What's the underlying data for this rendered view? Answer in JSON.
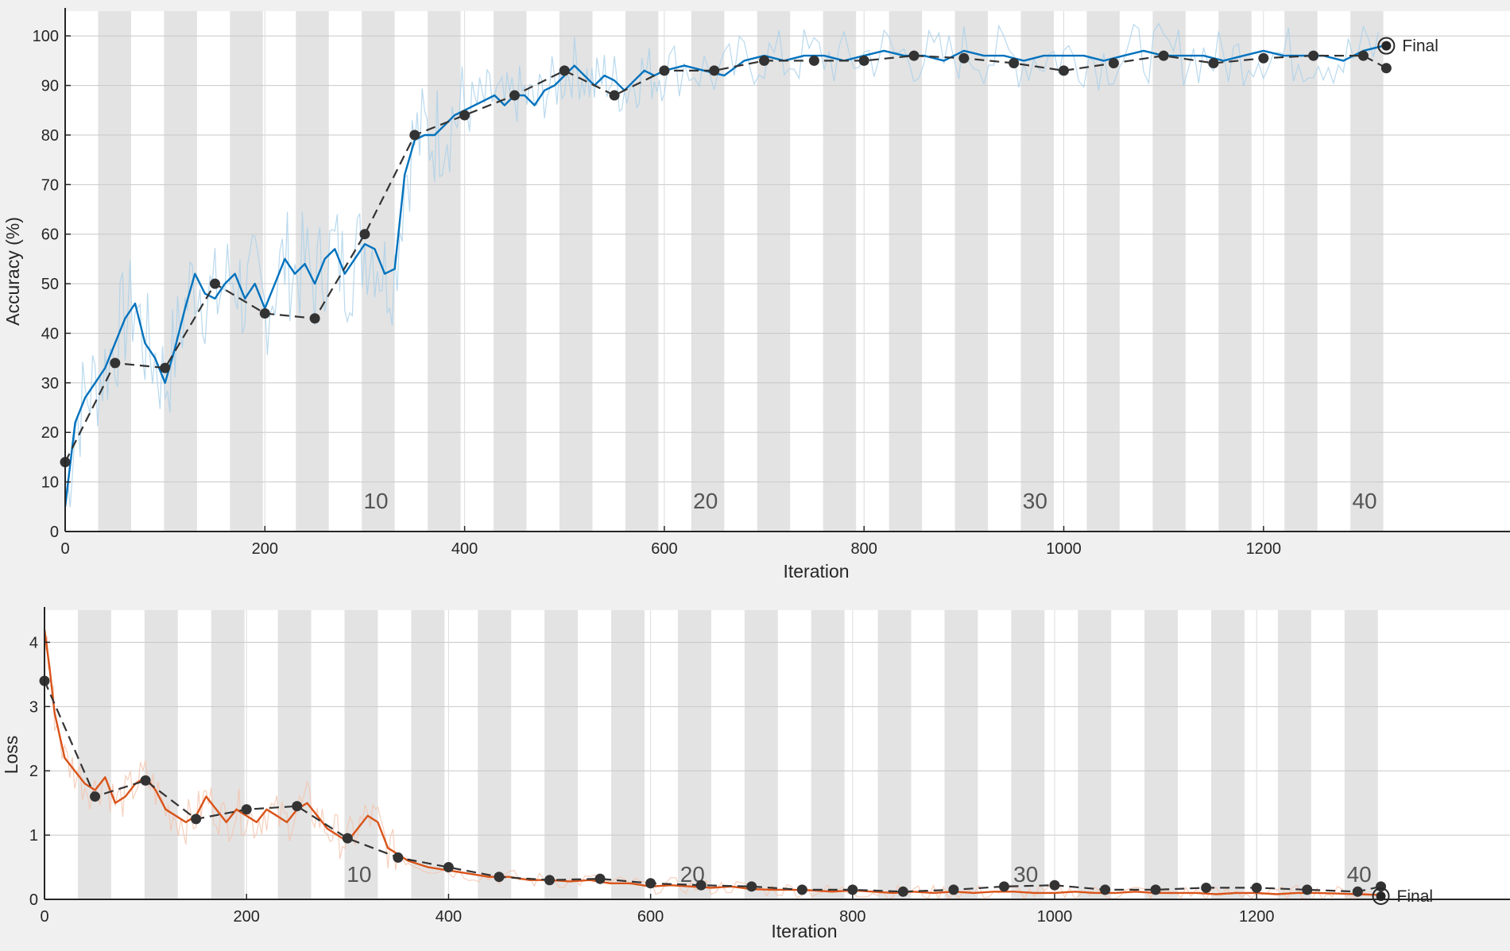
{
  "chart_data": [
    {
      "type": "line",
      "xlabel": "Iteration",
      "ylabel": "Accuracy (%)",
      "xlim": [
        0,
        1380
      ],
      "ylim": [
        0,
        105
      ],
      "x_ticks": [
        0,
        200,
        400,
        600,
        800,
        1000,
        1200
      ],
      "y_ticks": [
        0,
        10,
        20,
        30,
        40,
        50,
        60,
        70,
        80,
        90,
        100
      ],
      "x_tick_labels": [
        "0",
        "200",
        "400",
        "600",
        "800",
        "1000",
        "1200"
      ],
      "y_tick_labels": [
        "0",
        "10",
        "20",
        "30",
        "40",
        "50",
        "60",
        "70",
        "80",
        "90",
        "100"
      ],
      "grid": true,
      "epoch_bands": {
        "iterations_per_epoch": 33,
        "epochs": 40,
        "labels": [
          {
            "epoch": 10,
            "text": "10"
          },
          {
            "epoch": 20,
            "text": "20"
          },
          {
            "epoch": 30,
            "text": "30"
          },
          {
            "epoch": 40,
            "text": "40"
          }
        ]
      },
      "final_label": "Final",
      "final_point": {
        "x": 1323,
        "y": 98
      },
      "colors": {
        "training": "#0072bd",
        "training_raw": "#a8cfea",
        "validation": "#333333",
        "band": "#e3e3e3"
      },
      "series": [
        {
          "kind": "smoothed-training",
          "x": [
            0,
            10,
            20,
            30,
            40,
            50,
            60,
            70,
            80,
            90,
            100,
            110,
            120,
            130,
            140,
            150,
            160,
            170,
            180,
            190,
            200,
            210,
            220,
            230,
            240,
            250,
            260,
            270,
            280,
            290,
            300,
            310,
            320,
            330,
            340,
            350,
            360,
            370,
            380,
            390,
            400,
            410,
            420,
            430,
            440,
            450,
            460,
            470,
            480,
            490,
            500,
            510,
            520,
            530,
            540,
            550,
            560,
            570,
            580,
            590,
            600,
            620,
            640,
            660,
            680,
            700,
            720,
            740,
            760,
            780,
            800,
            820,
            840,
            860,
            880,
            900,
            920,
            940,
            960,
            980,
            1000,
            1020,
            1040,
            1060,
            1080,
            1100,
            1120,
            1140,
            1160,
            1180,
            1200,
            1220,
            1240,
            1260,
            1280,
            1300,
            1320
          ],
          "y": [
            5,
            22,
            27,
            30,
            33,
            38,
            43,
            46,
            38,
            35,
            30,
            37,
            45,
            52,
            48,
            47,
            50,
            52,
            47,
            50,
            45,
            50,
            55,
            52,
            54,
            50,
            55,
            57,
            52,
            55,
            58,
            57,
            52,
            53,
            72,
            79,
            80,
            80,
            82,
            84,
            85,
            86,
            87,
            88,
            86,
            88,
            88,
            86,
            89,
            90,
            92,
            94,
            92,
            90,
            92,
            91,
            89,
            91,
            93,
            92,
            93,
            94,
            93,
            92,
            95,
            96,
            95,
            96,
            96,
            95,
            96,
            97,
            96,
            96,
            95,
            97,
            96,
            96,
            95,
            96,
            96,
            96,
            95,
            96,
            97,
            96,
            96,
            96,
            95,
            96,
            97,
            96,
            96,
            96,
            95,
            97,
            98
          ]
        },
        {
          "kind": "validation",
          "x": [
            0,
            50,
            100,
            150,
            200,
            250,
            300,
            350,
            400,
            450,
            500,
            550,
            600,
            650,
            700,
            750,
            800,
            850,
            900,
            950,
            1000,
            1050,
            1100,
            1150,
            1200,
            1250,
            1300,
            1323
          ],
          "y": [
            14,
            34,
            33,
            50,
            44,
            43,
            60,
            80,
            84,
            88,
            93,
            88,
            93,
            93,
            95,
            95,
            95,
            96,
            95.5,
            94.5,
            93,
            94.5,
            96,
            94.5,
            95.5,
            96,
            96,
            93.5
          ]
        }
      ]
    },
    {
      "type": "line",
      "xlabel": "Iteration",
      "ylabel": "Loss",
      "xlim": [
        0,
        1380
      ],
      "ylim": [
        0,
        4.5
      ],
      "x_ticks": [
        0,
        200,
        400,
        600,
        800,
        1000,
        1200
      ],
      "y_ticks": [
        0,
        1,
        2,
        3,
        4
      ],
      "x_tick_labels": [
        "0",
        "200",
        "400",
        "600",
        "800",
        "1000",
        "1200"
      ],
      "y_tick_labels": [
        "0",
        "1",
        "2",
        "3",
        "4"
      ],
      "grid": true,
      "epoch_bands": {
        "iterations_per_epoch": 33,
        "epochs": 40,
        "labels": [
          {
            "epoch": 10,
            "text": "10"
          },
          {
            "epoch": 20,
            "text": "20"
          },
          {
            "epoch": 30,
            "text": "30"
          },
          {
            "epoch": 40,
            "text": "40"
          }
        ]
      },
      "final_label": "Final",
      "final_point": {
        "x": 1323,
        "y": 0.05
      },
      "colors": {
        "training": "#d95319",
        "training_raw": "#f4c3ad",
        "validation": "#333333",
        "band": "#e3e3e3"
      },
      "series": [
        {
          "kind": "smoothed-training",
          "x": [
            0,
            5,
            10,
            20,
            30,
            40,
            50,
            60,
            70,
            80,
            90,
            100,
            110,
            120,
            130,
            140,
            150,
            160,
            170,
            180,
            190,
            200,
            210,
            220,
            230,
            240,
            250,
            260,
            270,
            280,
            290,
            300,
            310,
            320,
            330,
            340,
            350,
            360,
            380,
            400,
            420,
            440,
            460,
            480,
            500,
            520,
            540,
            560,
            580,
            600,
            620,
            640,
            660,
            680,
            700,
            720,
            740,
            760,
            780,
            800,
            820,
            840,
            860,
            880,
            900,
            920,
            940,
            960,
            980,
            1000,
            1020,
            1040,
            1060,
            1080,
            1100,
            1120,
            1140,
            1160,
            1180,
            1200,
            1220,
            1240,
            1260,
            1280,
            1300,
            1320
          ],
          "y": [
            4.2,
            3.6,
            2.9,
            2.2,
            2.0,
            1.8,
            1.7,
            1.9,
            1.5,
            1.6,
            1.8,
            1.9,
            1.7,
            1.4,
            1.3,
            1.2,
            1.3,
            1.6,
            1.4,
            1.2,
            1.4,
            1.3,
            1.2,
            1.4,
            1.3,
            1.2,
            1.4,
            1.5,
            1.3,
            1.1,
            1.0,
            0.9,
            1.1,
            1.3,
            1.2,
            0.8,
            0.7,
            0.6,
            0.5,
            0.45,
            0.4,
            0.35,
            0.35,
            0.3,
            0.3,
            0.28,
            0.3,
            0.25,
            0.25,
            0.2,
            0.22,
            0.2,
            0.18,
            0.2,
            0.16,
            0.15,
            0.15,
            0.14,
            0.12,
            0.14,
            0.12,
            0.1,
            0.12,
            0.1,
            0.12,
            0.1,
            0.12,
            0.12,
            0.1,
            0.1,
            0.12,
            0.1,
            0.1,
            0.12,
            0.1,
            0.1,
            0.1,
            0.08,
            0.1,
            0.1,
            0.08,
            0.1,
            0.1,
            0.09,
            0.08,
            0.07
          ]
        },
        {
          "kind": "validation",
          "x": [
            0,
            50,
            100,
            150,
            200,
            250,
            300,
            350,
            400,
            450,
            500,
            550,
            600,
            650,
            700,
            750,
            800,
            850,
            900,
            950,
            1000,
            1050,
            1100,
            1150,
            1200,
            1250,
            1300,
            1323
          ],
          "y": [
            3.4,
            1.6,
            1.85,
            1.25,
            1.4,
            1.45,
            0.95,
            0.65,
            0.5,
            0.35,
            0.3,
            0.32,
            0.25,
            0.22,
            0.2,
            0.15,
            0.15,
            0.12,
            0.15,
            0.2,
            0.22,
            0.15,
            0.15,
            0.18,
            0.18,
            0.15,
            0.12,
            0.2
          ]
        }
      ]
    }
  ]
}
